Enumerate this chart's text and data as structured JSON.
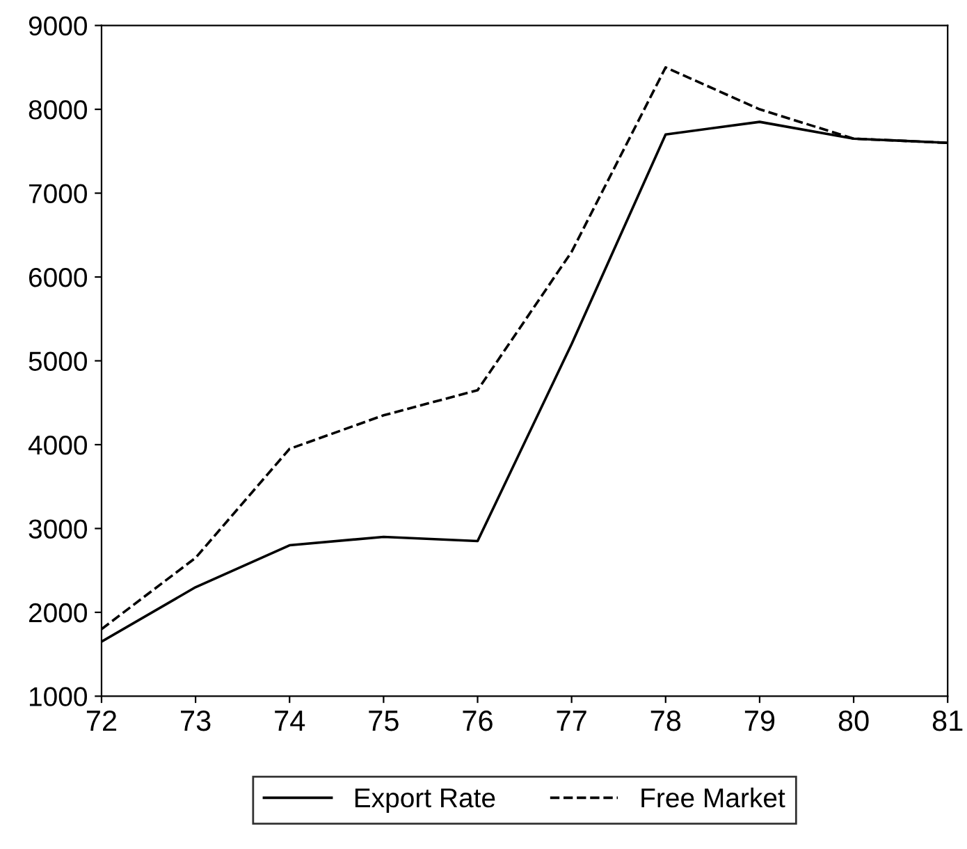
{
  "chart_data": {
    "type": "line",
    "x": [
      72,
      73,
      74,
      75,
      76,
      77,
      78,
      79,
      80,
      81
    ],
    "series": [
      {
        "name": "Export Rate",
        "color": "#000000",
        "line_style": "solid",
        "values": [
          1650,
          2300,
          2800,
          2900,
          2850,
          5200,
          7700,
          7850,
          7650,
          7600
        ]
      },
      {
        "name": "Free Market",
        "color": "#000000",
        "line_style": "dashed",
        "values": [
          1800,
          2650,
          3950,
          4350,
          4650,
          6300,
          8500,
          8000,
          7650,
          7600
        ]
      }
    ],
    "xlim": [
      72,
      81
    ],
    "xticks": [
      72,
      73,
      74,
      75,
      76,
      77,
      78,
      79,
      80,
      81
    ],
    "ylim": [
      1000,
      9000
    ],
    "yticks": [
      1000,
      2000,
      3000,
      4000,
      5000,
      6000,
      7000,
      8000,
      9000
    ],
    "grid": false,
    "legend": "bottom",
    "marker": "none"
  }
}
